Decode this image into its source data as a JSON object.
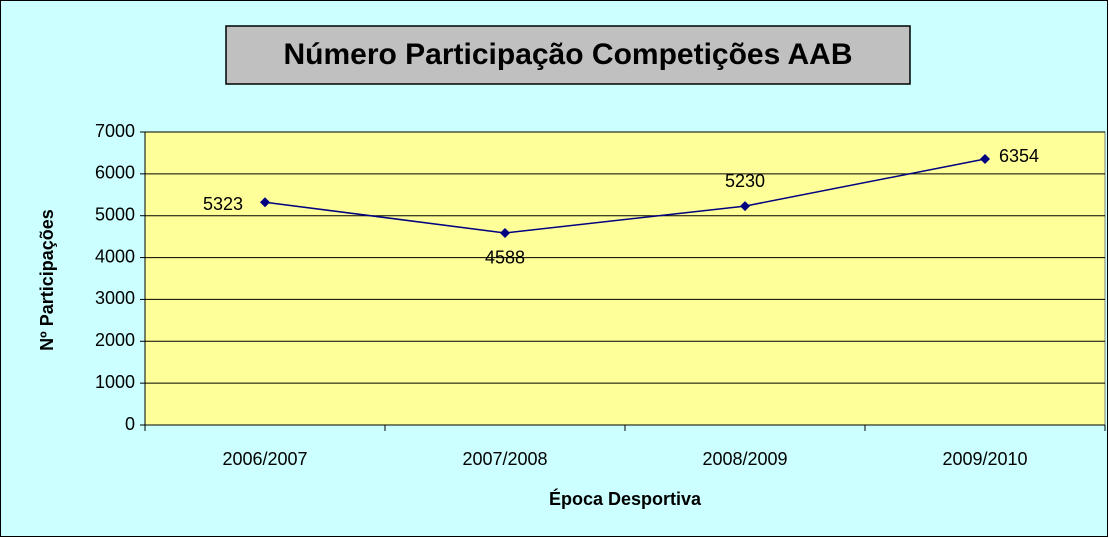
{
  "chart_data": {
    "type": "line",
    "title": "Número Participação Competições AAB",
    "x_label": "Época Desportiva",
    "y_label": "Nº Participações",
    "categories": [
      "2006/2007",
      "2007/2008",
      "2008/2009",
      "2009/2010"
    ],
    "series": [
      {
        "name": "Participações",
        "color": "#000080",
        "values": [
          5323,
          4588,
          5230,
          6354
        ]
      }
    ],
    "ylim": [
      0,
      7000
    ],
    "yticks": [
      0,
      1000,
      2000,
      3000,
      4000,
      5000,
      6000,
      7000
    ],
    "grid": true
  }
}
